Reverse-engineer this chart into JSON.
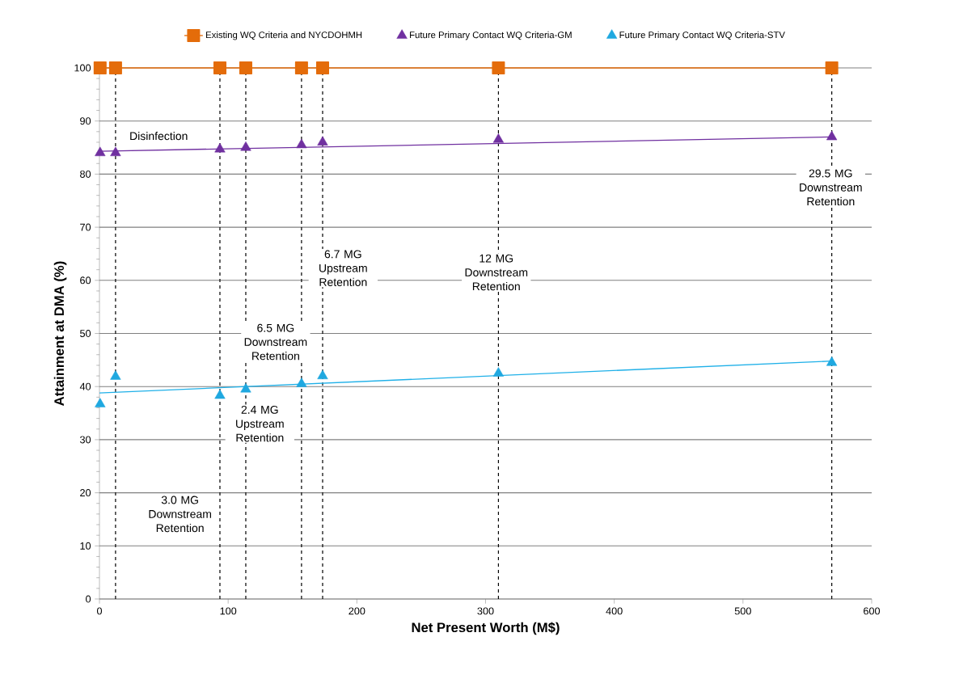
{
  "chart_data": {
    "type": "scatter",
    "xlabel": "Net Present Worth (M$)",
    "ylabel": "Attainment at DMA (%)",
    "xlim": [
      0,
      600
    ],
    "ylim": [
      0,
      100
    ],
    "xticks": [
      0,
      100,
      200,
      300,
      400,
      500,
      600
    ],
    "yticks": [
      0,
      10,
      20,
      30,
      40,
      50,
      60,
      70,
      80,
      90,
      100
    ],
    "grid": "y",
    "legend": "top",
    "series": [
      {
        "name": "Existing WQ Criteria and NYCDOHMH",
        "type": "line",
        "marker": "square",
        "color": "#e46c0a",
        "x": [
          0.5,
          12.5,
          93.6,
          113.7,
          157,
          173.4,
          310,
          569
        ],
        "values": [
          100,
          100,
          100,
          100,
          100,
          100,
          100,
          100
        ]
      },
      {
        "name": "Future Primary Contact WQ Criteria-GM",
        "marker": "triangle",
        "color": "#7030a0",
        "x": [
          0.5,
          12.5,
          93.6,
          113.7,
          157,
          173.4,
          310,
          569
        ],
        "values": [
          84,
          84,
          84.7,
          85,
          85.5,
          86,
          86.5,
          87
        ]
      },
      {
        "name": "Future Primary Contact WQ Criteria-STV",
        "marker": "triangle",
        "color": "#1fa8e0",
        "x": [
          0.5,
          12.5,
          93.6,
          113.7,
          157,
          173.4,
          310,
          569
        ],
        "values": [
          36.7,
          41.9,
          38.3,
          39.5,
          40.5,
          42,
          42.5,
          44.5
        ]
      },
      {
        "type": "line",
        "marker": "none",
        "color": "#7030a0",
        "x": [
          0,
          569
        ],
        "values": [
          84.3,
          87
        ]
      },
      {
        "type": "line",
        "marker": "none",
        "color": "#1fb0e8",
        "x": [
          0,
          569
        ],
        "values": [
          38.8,
          44.8
        ]
      }
    ],
    "ref_lines": [
      {
        "axis": "x",
        "value": 12.5,
        "color": "#000000",
        "line_style": "dashed",
        "label": "Disinfection"
      },
      {
        "axis": "x",
        "value": 93.6,
        "color": "#000000",
        "line_style": "dashed",
        "label": "3.0 MG Downstream Retention"
      },
      {
        "axis": "x",
        "value": 113.7,
        "color": "#000000",
        "line_style": "dashed",
        "label": "2.4 MG Upstream Retention"
      },
      {
        "axis": "x",
        "value": 157,
        "color": "#000000",
        "line_style": "dashed",
        "label": "6.5 MG Downstream Retention"
      },
      {
        "axis": "x",
        "value": 173.4,
        "color": "#000000",
        "line_style": "dashed",
        "label": "6.7 MG Upstream Retention"
      },
      {
        "axis": "x",
        "value": 310,
        "color": "#000000",
        "line_style": "dashed",
        "label": "12 MG Downstream Retention"
      },
      {
        "axis": "x",
        "value": 569,
        "color": "#000000",
        "line_style": "dashed",
        "label": "29.5 MG Downstream Retention"
      }
    ]
  }
}
